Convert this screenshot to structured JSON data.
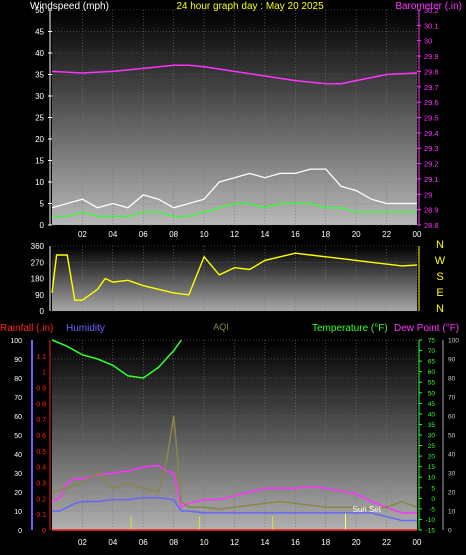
{
  "colors": {
    "wind_label": "#ffffff",
    "title": "#ffff00",
    "barometer": "#ff33ff",
    "direction": "#ffff00",
    "rainfall": "#ff2222",
    "humidity": "#6666ff",
    "aqi": "#888844",
    "temperature": "#33ff33",
    "dew_point": "#ff33ff",
    "sun": "#ffff66"
  },
  "top_panel": {
    "title": "24 hour graph day : May 20 2025",
    "wind_label": "Windspeed (mph)",
    "barometer_label": "Barometer (.in)",
    "chart_data": {
      "type": "line",
      "title": "24 hour graph day : May 20 2025",
      "left_axis": {
        "label": "Windspeed (mph)",
        "min": 0,
        "max": 50,
        "ticks": [
          "0",
          "5",
          "10",
          "15",
          "20",
          "25",
          "30",
          "35",
          "40",
          "45",
          "50"
        ]
      },
      "right_axis": {
        "label": "Barometer (.in)",
        "min": 28.8,
        "max": 30.2,
        "ticks": [
          "28.8",
          "28.9",
          "29",
          "29.1",
          "29.2",
          "29.3",
          "29.4",
          "29.5",
          "29.6",
          "29.7",
          "29.8",
          "29.9",
          "30",
          "30.1",
          "30.2"
        ]
      },
      "x_ticks": [
        "02",
        "04",
        "06",
        "08",
        "10",
        "12",
        "14",
        "16",
        "18",
        "20",
        "22",
        "00"
      ],
      "series": [
        {
          "name": "Barometer (.in)",
          "color": "#ff33ff",
          "axis": "right",
          "x": [
            0,
            2,
            4,
            6,
            8,
            9,
            10,
            12,
            14,
            16,
            18,
            19,
            20,
            22,
            24
          ],
          "values": [
            29.8,
            29.79,
            29.8,
            29.82,
            29.84,
            29.84,
            29.83,
            29.8,
            29.77,
            29.74,
            29.72,
            29.72,
            29.74,
            29.78,
            29.79
          ]
        },
        {
          "name": "Wind gust",
          "color": "#ffffff",
          "axis": "left",
          "x": [
            0,
            1,
            2,
            3,
            4,
            5,
            6,
            7,
            8,
            9,
            10,
            11,
            12,
            13,
            14,
            15,
            16,
            17,
            18,
            19,
            20,
            21,
            22,
            23,
            24
          ],
          "values": [
            4,
            5,
            6,
            4,
            5,
            4,
            7,
            6,
            4,
            5,
            6,
            10,
            11,
            12,
            11,
            12,
            12,
            13,
            13,
            9,
            8,
            6,
            5,
            5,
            5
          ]
        },
        {
          "name": "Wind speed",
          "color": "#33ff33",
          "axis": "left",
          "x": [
            0,
            1,
            2,
            3,
            4,
            5,
            6,
            7,
            8,
            9,
            10,
            11,
            12,
            13,
            14,
            15,
            16,
            17,
            18,
            19,
            20,
            21,
            22,
            23,
            24
          ],
          "values": [
            2,
            2,
            3,
            2,
            2,
            2,
            3,
            3,
            2,
            2,
            3,
            4,
            5,
            5,
            4,
            5,
            5,
            5,
            4,
            4,
            3,
            3,
            3,
            3,
            3
          ]
        }
      ]
    }
  },
  "direction_panel": {
    "compass_letters": [
      "N",
      "W",
      "S",
      "E",
      "N"
    ],
    "chart_data": {
      "type": "line",
      "y_axis": {
        "min": 0,
        "max": 360,
        "ticks": [
          "0",
          "90",
          "180",
          "270",
          "360"
        ]
      },
      "x_ticks": [
        "02",
        "04",
        "06",
        "08",
        "10",
        "12",
        "14",
        "16",
        "18",
        "20",
        "22",
        "00"
      ],
      "series": [
        {
          "name": "Wind direction",
          "color": "#ffff00",
          "x": [
            0,
            0.3,
            1,
            1.5,
            2,
            3,
            3.5,
            4,
            5,
            6,
            7,
            8,
            9,
            10,
            11,
            12,
            13,
            14,
            15,
            16,
            17,
            18,
            19,
            20,
            21,
            22,
            23,
            24
          ],
          "values": [
            100,
            310,
            310,
            60,
            60,
            120,
            180,
            160,
            170,
            140,
            120,
            100,
            90,
            300,
            200,
            240,
            230,
            280,
            300,
            320,
            310,
            300,
            290,
            280,
            270,
            260,
            250,
            255
          ]
        }
      ]
    }
  },
  "bottom_panel": {
    "rainfall_label": "Rainfall (.in)",
    "humidity_label": "Humidity",
    "aqi_label": "AQI",
    "temperature_label": "Temperature (°F)",
    "dew_point_label": "Dew Point (°F)",
    "sunset_label": "Sun Set",
    "chart_data": {
      "type": "line",
      "rainfall_axis": {
        "label": "Rainfall (.in)",
        "min": 0,
        "max": 1.2,
        "ticks": [
          "0",
          "0.1",
          "0.2",
          "0.3",
          "0.4",
          "0.5",
          "0.6",
          "0.7",
          "0.8",
          "0.9",
          "1",
          "1.1"
        ]
      },
      "humidity_axis": {
        "label": "Humidity",
        "min": 0,
        "max": 100,
        "ticks": [
          "0",
          "10",
          "20",
          "30",
          "40",
          "50",
          "60",
          "70",
          "80",
          "90",
          "100"
        ]
      },
      "temp_axis": {
        "label": "Temperature (°F)",
        "min": -15,
        "max": 75,
        "ticks": [
          "-15",
          "-10",
          "-5",
          "0",
          "5",
          "10",
          "15",
          "20",
          "25",
          "30",
          "35",
          "40",
          "45",
          "50",
          "55",
          "60",
          "65",
          "70",
          "75"
        ]
      },
      "aqi_axis": {
        "label": "AQI",
        "ticks": [
          "0",
          "10",
          "20",
          "30",
          "40",
          "50",
          "60",
          "70",
          "80",
          "90",
          "100"
        ]
      },
      "x_ticks": [
        "02",
        "04",
        "06",
        "08",
        "10",
        "12",
        "14",
        "16",
        "18",
        "20",
        "22",
        "00"
      ],
      "sunset_hour": 19.3,
      "series": [
        {
          "name": "Temperature (°F)",
          "color": "#33ff33",
          "axis": "temp",
          "x": [
            0,
            1,
            2,
            3,
            4,
            5,
            6,
            7,
            8,
            8.5
          ],
          "values": [
            75,
            72,
            68,
            66,
            63,
            58,
            57,
            62,
            70,
            75
          ]
        },
        {
          "name": "Dew Point (°F)",
          "color": "#ff33ff",
          "axis": "humidity",
          "x": [
            0,
            0.5,
            1,
            1.5,
            2,
            3,
            4,
            5,
            6,
            7,
            7.5,
            8,
            8.5,
            9,
            10,
            11,
            12,
            14,
            16,
            17,
            18,
            20,
            21,
            22,
            23,
            24
          ],
          "values": [
            15,
            17,
            25,
            27,
            27,
            29,
            30,
            31,
            33,
            34,
            31,
            30,
            12,
            14,
            16,
            16,
            18,
            22,
            22,
            23,
            22,
            19,
            15,
            12,
            9,
            9
          ]
        },
        {
          "name": "Humidity",
          "color": "#6666ff",
          "axis": "humidity",
          "x": [
            0,
            0.5,
            1,
            1.5,
            2,
            3,
            4,
            5,
            6,
            7,
            8,
            8.5,
            9,
            10,
            12,
            14,
            16,
            18,
            20,
            21,
            22,
            23,
            24
          ],
          "values": [
            10,
            10,
            12,
            14,
            15,
            15,
            16,
            16,
            17,
            17,
            16,
            10,
            10,
            9,
            9,
            9,
            9,
            9,
            9,
            9,
            7,
            5,
            5
          ]
        },
        {
          "name": "AQI",
          "color": "#888844",
          "axis": "humidity",
          "x": [
            0,
            1,
            2,
            3,
            4,
            5,
            6,
            7,
            7.5,
            8,
            8.5,
            9,
            10,
            11,
            12,
            13,
            14,
            15,
            16,
            17,
            18,
            19,
            20,
            21,
            22,
            23,
            24
          ],
          "values": [
            20,
            22,
            25,
            30,
            22,
            25,
            22,
            20,
            35,
            60,
            15,
            12,
            12,
            11,
            12,
            13,
            14,
            15,
            14,
            13,
            12,
            12,
            12,
            11,
            12,
            15,
            12
          ]
        },
        {
          "name": "Rainfall (.in)",
          "color": "#ff2222",
          "axis": "rain",
          "x": [
            0,
            24
          ],
          "values": [
            0,
            0
          ]
        }
      ]
    }
  }
}
